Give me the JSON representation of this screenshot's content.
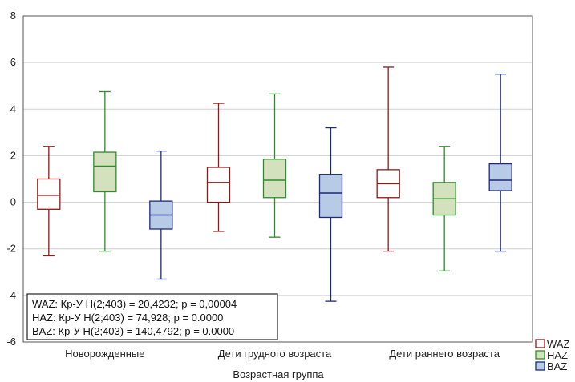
{
  "chart_data": {
    "type": "boxplot",
    "xlabel": "Возрастная группа",
    "ylabel": "",
    "ylim": [
      -6,
      8
    ],
    "yticks": [
      -6,
      -4,
      -2,
      0,
      2,
      4,
      6,
      8
    ],
    "grid": true,
    "categories": [
      "Новорожденные",
      "Дети грудного возраста",
      "Дети раннего возраста"
    ],
    "series": [
      {
        "name": "WAZ",
        "color": "#8b1a1a",
        "fill": "#ffffff",
        "stats": [
          {
            "min": -2.3,
            "q1": -0.3,
            "median": 0.3,
            "q3": 1.0,
            "max": 2.4
          },
          {
            "min": -1.25,
            "q1": 0.0,
            "median": 0.85,
            "q3": 1.5,
            "max": 4.25
          },
          {
            "min": -2.1,
            "q1": 0.2,
            "median": 0.8,
            "q3": 1.4,
            "max": 5.8
          }
        ]
      },
      {
        "name": "HAZ",
        "color": "#2e8b2e",
        "fill": "#d3e2bd",
        "stats": [
          {
            "min": -2.1,
            "q1": 0.45,
            "median": 1.55,
            "q3": 2.15,
            "max": 4.75
          },
          {
            "min": -1.5,
            "q1": 0.2,
            "median": 0.95,
            "q3": 1.85,
            "max": 4.65
          },
          {
            "min": -2.95,
            "q1": -0.55,
            "median": 0.15,
            "q3": 0.85,
            "max": 2.4
          }
        ]
      },
      {
        "name": "BAZ",
        "color": "#1f2a7a",
        "fill": "#b7cbe6",
        "stats": [
          {
            "min": -3.3,
            "q1": -1.15,
            "median": -0.55,
            "q3": 0.05,
            "max": 2.2
          },
          {
            "min": -4.25,
            "q1": -0.65,
            "median": 0.4,
            "q3": 1.2,
            "max": 3.2
          },
          {
            "min": -2.1,
            "q1": 0.5,
            "median": 0.95,
            "q3": 1.65,
            "max": 5.5
          }
        ]
      }
    ],
    "annotations": [
      "WAZ:  Кр-У H(2;403) = 20,4232; p = 0,00004",
      "HAZ:  Кр-У H(2;403) = 74,928; p = 0.0000",
      "BAZ:  Кр-У H(2;403) = 140,4792; p = 0.0000"
    ],
    "legend": {
      "placement": "bottom-right",
      "entries": [
        "WAZ",
        "HAZ",
        "BAZ"
      ]
    }
  }
}
